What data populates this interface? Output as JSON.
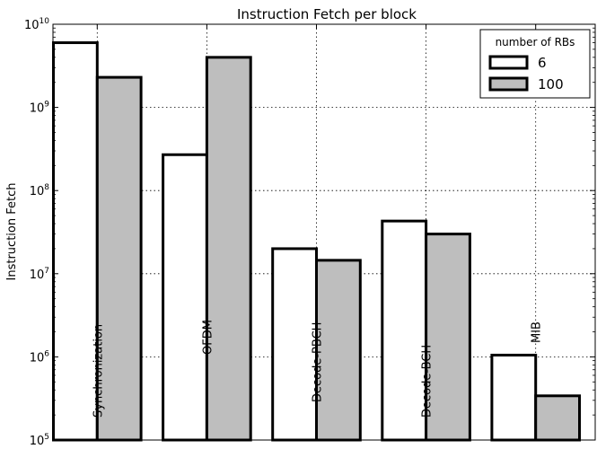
{
  "chart_data": {
    "type": "bar",
    "title": "Instruction Fetch per block",
    "ylabel": "Instruction Fetch",
    "xlabel": "",
    "yscale": "log",
    "ylim": [
      100000,
      10000000000
    ],
    "grid": true,
    "categories": [
      "Synchronization",
      "OFDM",
      "Decode-PBCH",
      "Decode-BCH",
      "MIB"
    ],
    "legend": {
      "title": "number of RBs",
      "placement": "top-right"
    },
    "series": [
      {
        "name": "6",
        "color": "#ffffff",
        "values": [
          6000000000,
          270000000,
          20000000,
          43000000,
          1050000
        ]
      },
      {
        "name": "100",
        "color": "#bebebe",
        "values": [
          2300000000,
          4000000000,
          14500000,
          30000000,
          340000
        ]
      }
    ],
    "yticks": [
      {
        "base": "10",
        "exp": "5"
      },
      {
        "base": "10",
        "exp": "6"
      },
      {
        "base": "10",
        "exp": "7"
      },
      {
        "base": "10",
        "exp": "8"
      },
      {
        "base": "10",
        "exp": "9"
      },
      {
        "base": "10",
        "exp": "10"
      }
    ]
  }
}
